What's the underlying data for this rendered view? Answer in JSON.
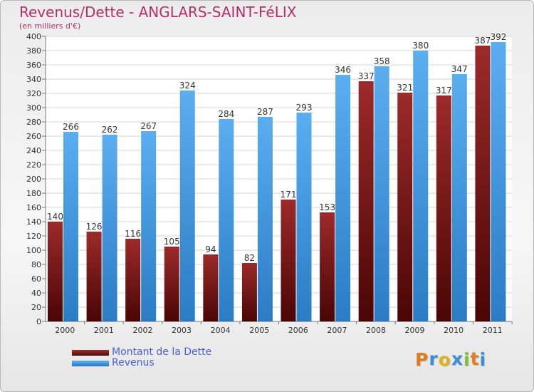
{
  "chart_data": {
    "type": "bar",
    "title": "Revenus/Dette - ANGLARS-SAINT-FéLIX",
    "subtitle": "(en milliers d'€)",
    "categories": [
      "2000",
      "2001",
      "2002",
      "2003",
      "2004",
      "2005",
      "2006",
      "2007",
      "2008",
      "2009",
      "2010",
      "2011"
    ],
    "series": [
      {
        "name": "Montant de la Dette",
        "color": "#7a1a1a",
        "values": [
          140,
          126,
          116,
          105,
          94,
          82,
          171,
          153,
          337,
          321,
          317,
          387
        ]
      },
      {
        "name": "Revenus",
        "color": "#3e93dc",
        "values": [
          266,
          262,
          267,
          324,
          284,
          287,
          293,
          346,
          358,
          380,
          347,
          392
        ]
      }
    ],
    "ylim": [
      0,
      400
    ],
    "ytick_step": 20,
    "grid": true,
    "legend_position": "bottom-left"
  },
  "logo": {
    "letters": [
      {
        "ch": "P",
        "color": "#e07b22"
      },
      {
        "ch": "r",
        "color": "#3c8fd8"
      },
      {
        "ch": "o",
        "color": "#e0b21f"
      },
      {
        "ch": "x",
        "color": "#3c8fd8"
      },
      {
        "ch": "i",
        "color": "#7cbf3a"
      },
      {
        "ch": "t",
        "color": "#e07b22"
      },
      {
        "ch": "i",
        "color": "#3c8fd8"
      }
    ]
  }
}
